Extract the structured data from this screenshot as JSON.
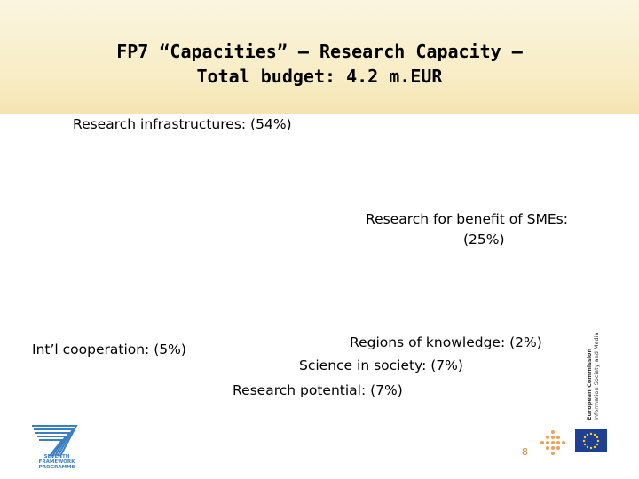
{
  "slide": {
    "title_line1": "FP7 “Capacities” – Research Capacity –",
    "title_line2": "Total budget: 4.2 m.EUR",
    "labels": {
      "infrastructures": "Research infrastructures: (54%)",
      "smes_line1": "Research for benefit of SMEs:",
      "smes_line2": "(25%)",
      "intl": "Int’l cooperation:  (5%)",
      "regions": "Regions of knowledge: (2%)",
      "science": "Science in society: (7%)",
      "potential": "Research potential:  (7%)"
    },
    "page_number": "8"
  },
  "branding": {
    "fp7_logo_text": "SEVENTH FRAMEWORK PROGRAMME",
    "ec_name": "European Commission",
    "ec_dg": "Information Society and Media"
  },
  "colors": {
    "header_band": "#f7ecc4",
    "accent_orange": "#d28a3c",
    "fp7_blue": "#3a7fc4",
    "eu_blue": "#1f3f95",
    "eu_star": "#ffd200"
  }
}
